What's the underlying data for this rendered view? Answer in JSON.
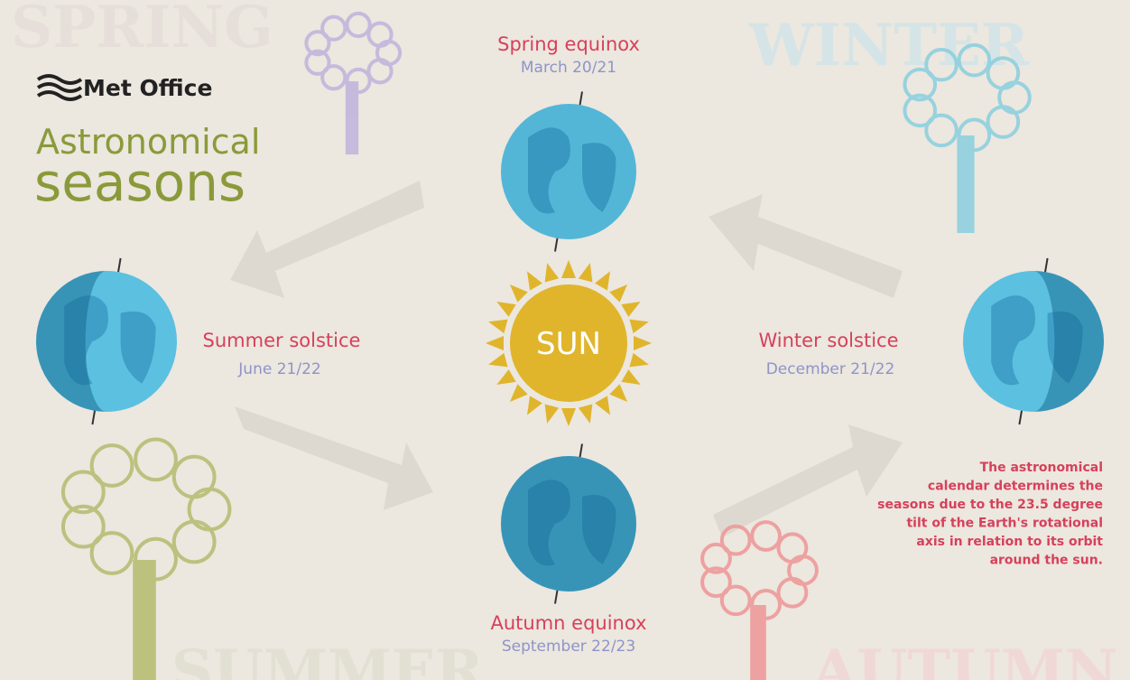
{
  "header": {
    "logo": "Met Office",
    "title": [
      "Astronomical",
      "seasons"
    ]
  },
  "watermarks": [
    "SPRING",
    "WINTER",
    "SUMMER",
    "AUTUMN"
  ],
  "events": [
    {
      "name": "Spring equinox",
      "date": "March 20/21"
    },
    {
      "name": "Summer solstice",
      "date": "June 21/22"
    },
    {
      "name": "Winter solstice",
      "date": "December 21/22"
    },
    {
      "name": "Autumn equinox",
      "date": "September 22/23"
    }
  ],
  "sun": "SUN",
  "note": [
    "The astronomical",
    "calendar determines the",
    "seasons due to the 23.5 degree",
    "tilt of the Earth's rotational",
    "axis in relation to its orbit",
    "around the sun."
  ]
}
